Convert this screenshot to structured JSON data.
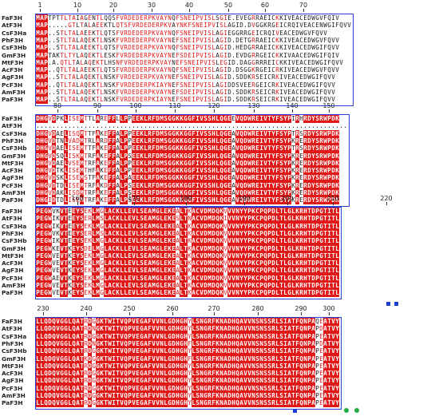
{
  "species": [
    "FaF3H",
    "AtF3H",
    "CsF3Ha",
    "PhF3H",
    "CsF3Hb",
    "GmF3H",
    "MtF3H",
    "AcF3H",
    "AgF3H",
    "PcF3H",
    "AmF3H",
    "PaF3H"
  ],
  "blocks": [
    {
      "ruler": [
        "1",
        "10",
        "20",
        "30",
        "40",
        "50",
        "60",
        "70"
      ],
      "rows": [
        "MAPTPTTLTAIAGENTLQQSFVRDEDERPKVAYNQFSNEIPVISLSGIE.EVEGRRAEICKKIVEACEDWGVFQIV",
        "MAP.....GTLTALAEEKTLQTSFVRDEDERPKVAYNKFSNEIPVISLAGID.DVGGKRGEICRQIVEACENWGIFQVV",
        "MAP..STLTALAEEKTLQTSFVRDEDERPKVAYNQFSNEIPVISLAGIEGGRRGEICRQIVEACEDWGVFQVV",
        "MAP..STLTALAQEKTLNSKFVRDEDERPKVAYNEFSNEIPVISLAGID.DETGRRAEICKKIVEACEDWGVFQVV",
        "MAP..STLTALAEEKTLQTSFVRDEDERPKVAYNQFSNEIPVISLAGID.HEDGRRAEICKKIVEACEDWGIFQVV",
        "MAPTAKTLTYLAQEKTLESKFVRDEDERPKVAYNEFSDEIPVISLAGID.EVDGRRGEICKKIVAACEDWGIFQIV",
        "MAP.A.QTLTALAQEKTLHSNFVRDEDERPKVAYNEFSNEIPVISLEGID.DAGGRRREICKKIVEACEDWGIFQVV",
        "MAP..QTLTALAEEKTLQTSFVRDEDERPKVAYNQFSNEIPVISLAGID.DSGGKRGEICRKIVEACEDWGVFQVV",
        "MAP..STLTALAQEKTLNSKFVRDEDERPKVAYNEFSNEIPVISLAGID.SDDKRSEICRKIVEACEDWGIFQVV",
        "MAP..QTLTALAQEKTLNSKFVRDEDERPKIAYNEFSNEIPVISLAGIDDSVEERGEICRKIVEACEDWGIFQVV",
        "MAP..STLTALAQEKTLNSKFVRDEDERPKVAYNEFSDEIPVISLAGID.SDDKRSEICRKIVEACEDWGIFQVV",
        "MAP..STLTALAQEKTLNSKFVRDEDERPKIAYNEFSNEIPVISLAGID.SDDKRSEICRKIVEACEDWGIFQVV"
      ]
    },
    {
      "ruler": [
        "80",
        "90",
        "100",
        "110",
        "120",
        "130",
        "140",
        "150"
      ],
      "rows": [
        "DHGVDPKLISEMTTLAREFFLLPPEEKLRFDMSGGKKGGFIVSSHLQGEEVQDWREIVTYFSYPIRHRDYSRWPDK",
        "..............................................................................",
        "DHGVDAELISQMTTFAKEFFALPPEEKLRFDMSGGKKGGFIVSSHLQGEAVQDWREIVTYFSYPTRSRDYSRWPDK",
        "DHGVDTNLVADMTRLARDFFALPPEEKLRFDMSGGKKGGFIVSSHLQGEAVQDWREIVTYFSYPKRERDYSRWPDK",
        "DHGVDAELISEMTTFAKEFFALPPEEKLRFDMSGGKKGGFIVSSHLQGEAVQDWREIVTYFSYPTRSRDYSRWPDK",
        "DHGVDSQLISKMTRFAKEFFALPSEEKLRFDMSGGKKGGFIVSSHLQGEAVQDWREIVTYFSYPKRERDYSRWPDK",
        "DHGVDAELVSEMTRFAKEFFALPPEEKLRFDMSGGKKGGFIVSSHLQGEAVQDWREIVTYFSYPKRERDYSRWPDK",
        "DHGVDTKLISEMTHFAKEFFALPPEEKLRFDMSGGKKGGFIVSSHLQGEAVQDWREIVTYFSYPKRERDYSRWPDK",
        "DHGVDSKLISEMSTFAKEFFALPAEEKLRFDMSGGKKGGFIVSSHLQGEAVQDWREIVTYFSYPKRERDYSRWPDK",
        "DHGVDTDLISEMTRFAKDFFALPSEEKLRFDMSGGKKGGFIVSSHLQGEAVQDWREIVTYFSYPKRERDYSRWPDK",
        "DHGVDAKLISDMTRFAKEFFALPSEEKLRFDMSGGKKGGFIVSSHLQGEAVQDWREIVTYFSYPKRERDYSRWPDK",
        "DHGIDTDLISEMTRFAKEFFALPSEEKLRFDMSGGKKGGFIVSSHLQGEAVQDWREIVTYFSYPKRERDYSRWPDK"
      ]
    },
    {
      "ruler": [
        "160",
        "170",
        "180",
        "190",
        "200",
        "210",
        "220"
      ],
      "rows": [
        "PEGWVKVTEEYSEKLMGLACKLLEVLSEAMGLEKEALTKACVDMDQKVVVNYYPKCPQPDLTLGLKRHTDPGTITL",
        "PEGWIKVTEEYSERLMSLACKLLEVLSEAMGLEKESLTNACVDMDQKIVVNYYPKCPQPDLTLGLKRHTDPGTITL",
        "PEGWIKVTEEYSEKLMGLACKLLEVLSEAMGLEKEALTKACVDMDQKVVVNYYPKCPQPDLTLGLKRHTDPGTITL",
        "PEGWVKVTEEYSERLMSLACKLLEVLSEAMGLEKEALTKACVDMDQKVVVNYYPKCPQPDLTLGLKRHTDPGTITL",
        "PEGWIKVTEEYSEKLMGLACKLLEVLSEAMGLEKEALTKACVDMDQKVVVNYYPKCPQPDLTLGLKRHTDPGTITL",
        "PEGWKEVTKEYSDELMGLACKLLEVLSEAMGLEKEALTKACVDMDQKVVVNYYPKCPQPDLTLGLKRHTDPGTITL",
        "PEGWVEVTKEYSEKLMGLACKLLEVLSEAMGLEKEALTKACVDMDQKVVVNYYPKCPQPDLTLGLKRHTDPGTITL",
        "PEGWVEVTKEYSEKLMGLACKLLEVLSEAMGLEKEALTKACVDMDQKVVVNYYPKCPQPDLTLGLKRHTDPGTITL",
        "PEGWVEVTKEYSEKLMGLACKLLEVLSEAMGLEKEALTKACVDMDQKVVVNYYPKCPQPDLTLGLKRHTDPGTITL",
        "PEGWAEVTKEYSEKLMGLACKLLEVLSEAMGLEKEALTKACVDMDQKVVVNYYPKCPQPDLTLGLKRHTDPGTITL",
        "PEGWVEVTKEYSEKLMGLACKLLEVLSEAMGLEKEALTKACVDMDQKVVVNYYPKCPQPDLTLGLKRHTDPGTITL",
        "PEGWVEVTKEYSEKLMGLACKLLEVLSEAMGLEKEALTKACVDMDQKVVVNYYPKCPQPDLTLGLKRHTDPGTITL"
      ]
    },
    {
      "ruler": [
        "230",
        "240",
        "250",
        "260",
        "270",
        "280",
        "290",
        "300"
      ],
      "rows": [
        "LLQDQVGGLQATRDGGKTWITVQPVEGAFVVNLGDHGHYLSNGRFKNADHQAVVNSNSSRLSIATFQNPAQEATVY",
        "LLQDQVGGLQATRDNGKTWITVQPVEGAFVVNLGDHGHYLSNGRFKNADHQAVVNSNSSRLSIATFQNPAPDATVY",
        "LLQDQVGGLQATRDGGKTWITVQPVEGAFVVNLGDHGHYLSNGRFKNADHQAVVNSNSSRLSIATFQNPAPEATVY",
        "LLQDQVGGLQATRDNGKTWITVQPVEGAFVVNLGDHGHFLSNGRFKNADHQAVVNSNSSRLSIATFQNPAPDATVY",
        "LLQDQVGGLQATRDGGKTWITVQPVEGAFVVNLGDHGHYLSNGRFKNADHQAVVNSNSSRLSIATFQNPAPEATVY",
        "LLQDQVGGLQATKDGGKTWITVQPVEGAFVVNLGDHGHFLSNGRFKNADHQAVVNSNSSRLSIATFQNPAPEATVY",
        "LLQDQVGGLQATRDGGKTWITVQPVEGAFVVNLGDHGHYLSNGRFKNADHQAVVNSNSSRLSIATFQNPAPEATVY",
        "LLQDQVGGLQATRDGGKTWITVQPVEGAFVVNLGDHGHYLSNGRFKNADHQAVVNSNSSRLSIATFQNPAPEATVY",
        "LLQDQVGGLQATRDGGKTWITVQPVEGAFVVNLGDHGHYLSNGRFKNADHQAVVNSNSSRLSIATFQNPAPEATVY",
        "LLQDQVGGLQATRDGGKTWITVQPVEGAFVVNLGDHGHYLSNGRFKNADHQAVVNSNSSRLSIATFQNPAPEATVY",
        "LLQDQVGGLQATRDGGKTWITVQPVEGAFVVNLGDHGHYLSNGRFKNADHQAVVNSNSSRLSIATFQNPAPEATVY",
        "LLQDQVGGLQATRDGGKTWITVQPVEGAFVVNLGDHGHYLSNGRFKNADHQAVVNSNSSRLSIATFQNPAPEATVY"
      ]
    }
  ],
  "colors": {
    "conserved": "#e01818",
    "similar": "#e01818",
    "box": "#2a3fd8",
    "marker_blue": "#1e3fd6",
    "marker_green": "#22aa44"
  }
}
